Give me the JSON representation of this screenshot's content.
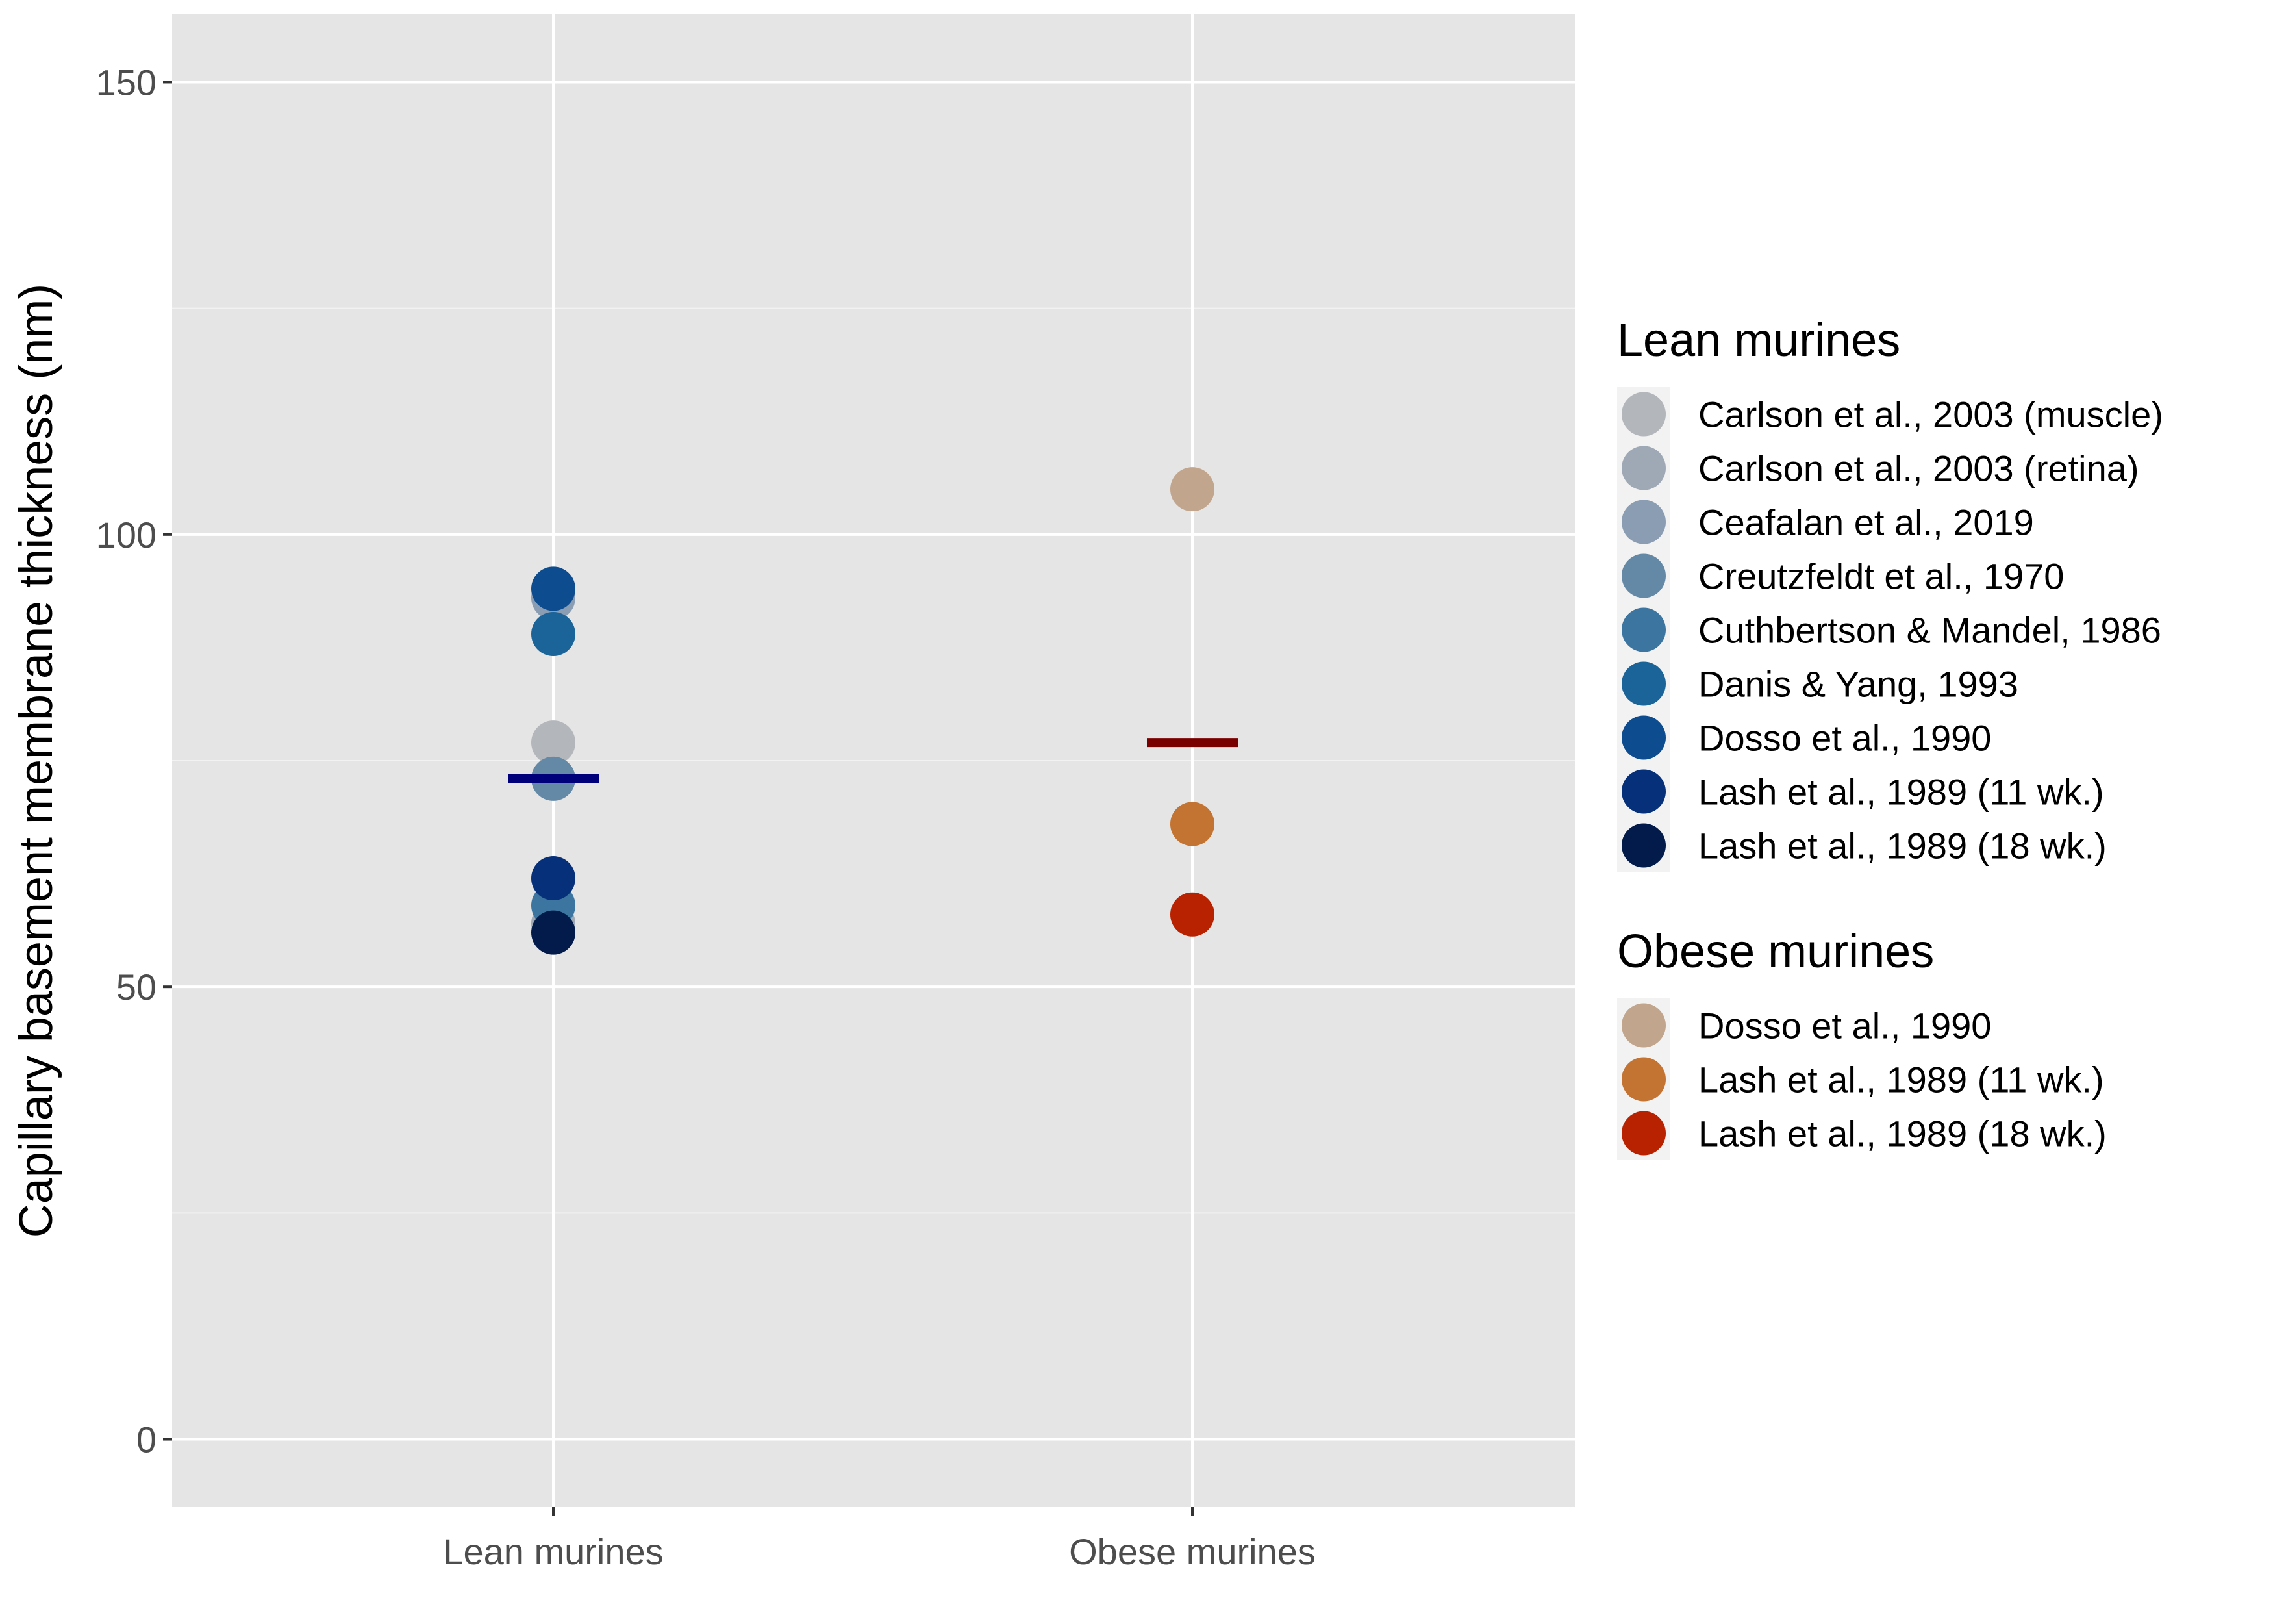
{
  "chart_data": {
    "type": "scatter",
    "title": "",
    "xlabel": "",
    "ylabel": "Capillary basement membrane thickness (nm)",
    "categories": [
      "Lean murines",
      "Obese murines"
    ],
    "ylim": [
      -7.5,
      157.5
    ],
    "yticks": [
      0,
      50,
      100,
      150
    ],
    "grid": true,
    "legend_position": "right",
    "groups": [
      {
        "name": "Lean murines",
        "category": "Lean murines",
        "mean": 73,
        "mean_color": "#00007a",
        "series": [
          {
            "name": "Carlson et al., 2003 (muscle)",
            "color": "#b3b6ba",
            "value": 77
          },
          {
            "name": "Carlson et al., 2003 (retina)",
            "color": "#9fa9b5",
            "value": 57
          },
          {
            "name": "Ceafalan et al., 2019",
            "color": "#8b9db3",
            "value": 93
          },
          {
            "name": "Creutzfeldt et al., 1970",
            "color": "#6489a6",
            "value": 73
          },
          {
            "name": "Cuthbertson & Mandel, 1986",
            "color": "#3c75a0",
            "value": 59
          },
          {
            "name": "Danis & Yang, 1993",
            "color": "#1b6499",
            "value": 89
          },
          {
            "name": "Dosso et al., 1990",
            "color": "#0c4c8f",
            "value": 94
          },
          {
            "name": "Lash et al., 1989 (11 wk.)",
            "color": "#06317a",
            "value": 62
          },
          {
            "name": "Lash et al., 1989 (18 wk.)",
            "color": "#021b4a",
            "value": 56
          }
        ]
      },
      {
        "name": "Obese murines",
        "category": "Obese murines",
        "mean": 77,
        "mean_color": "#7a0000",
        "series": [
          {
            "name": "Dosso et al., 1990",
            "color": "#c2a58d",
            "value": 105
          },
          {
            "name": "Lash et al., 1989 (11 wk.)",
            "color": "#c47432",
            "value": 68
          },
          {
            "name": "Lash et al., 1989 (18 wk.)",
            "color": "#b82200",
            "value": 58
          }
        ]
      }
    ]
  }
}
